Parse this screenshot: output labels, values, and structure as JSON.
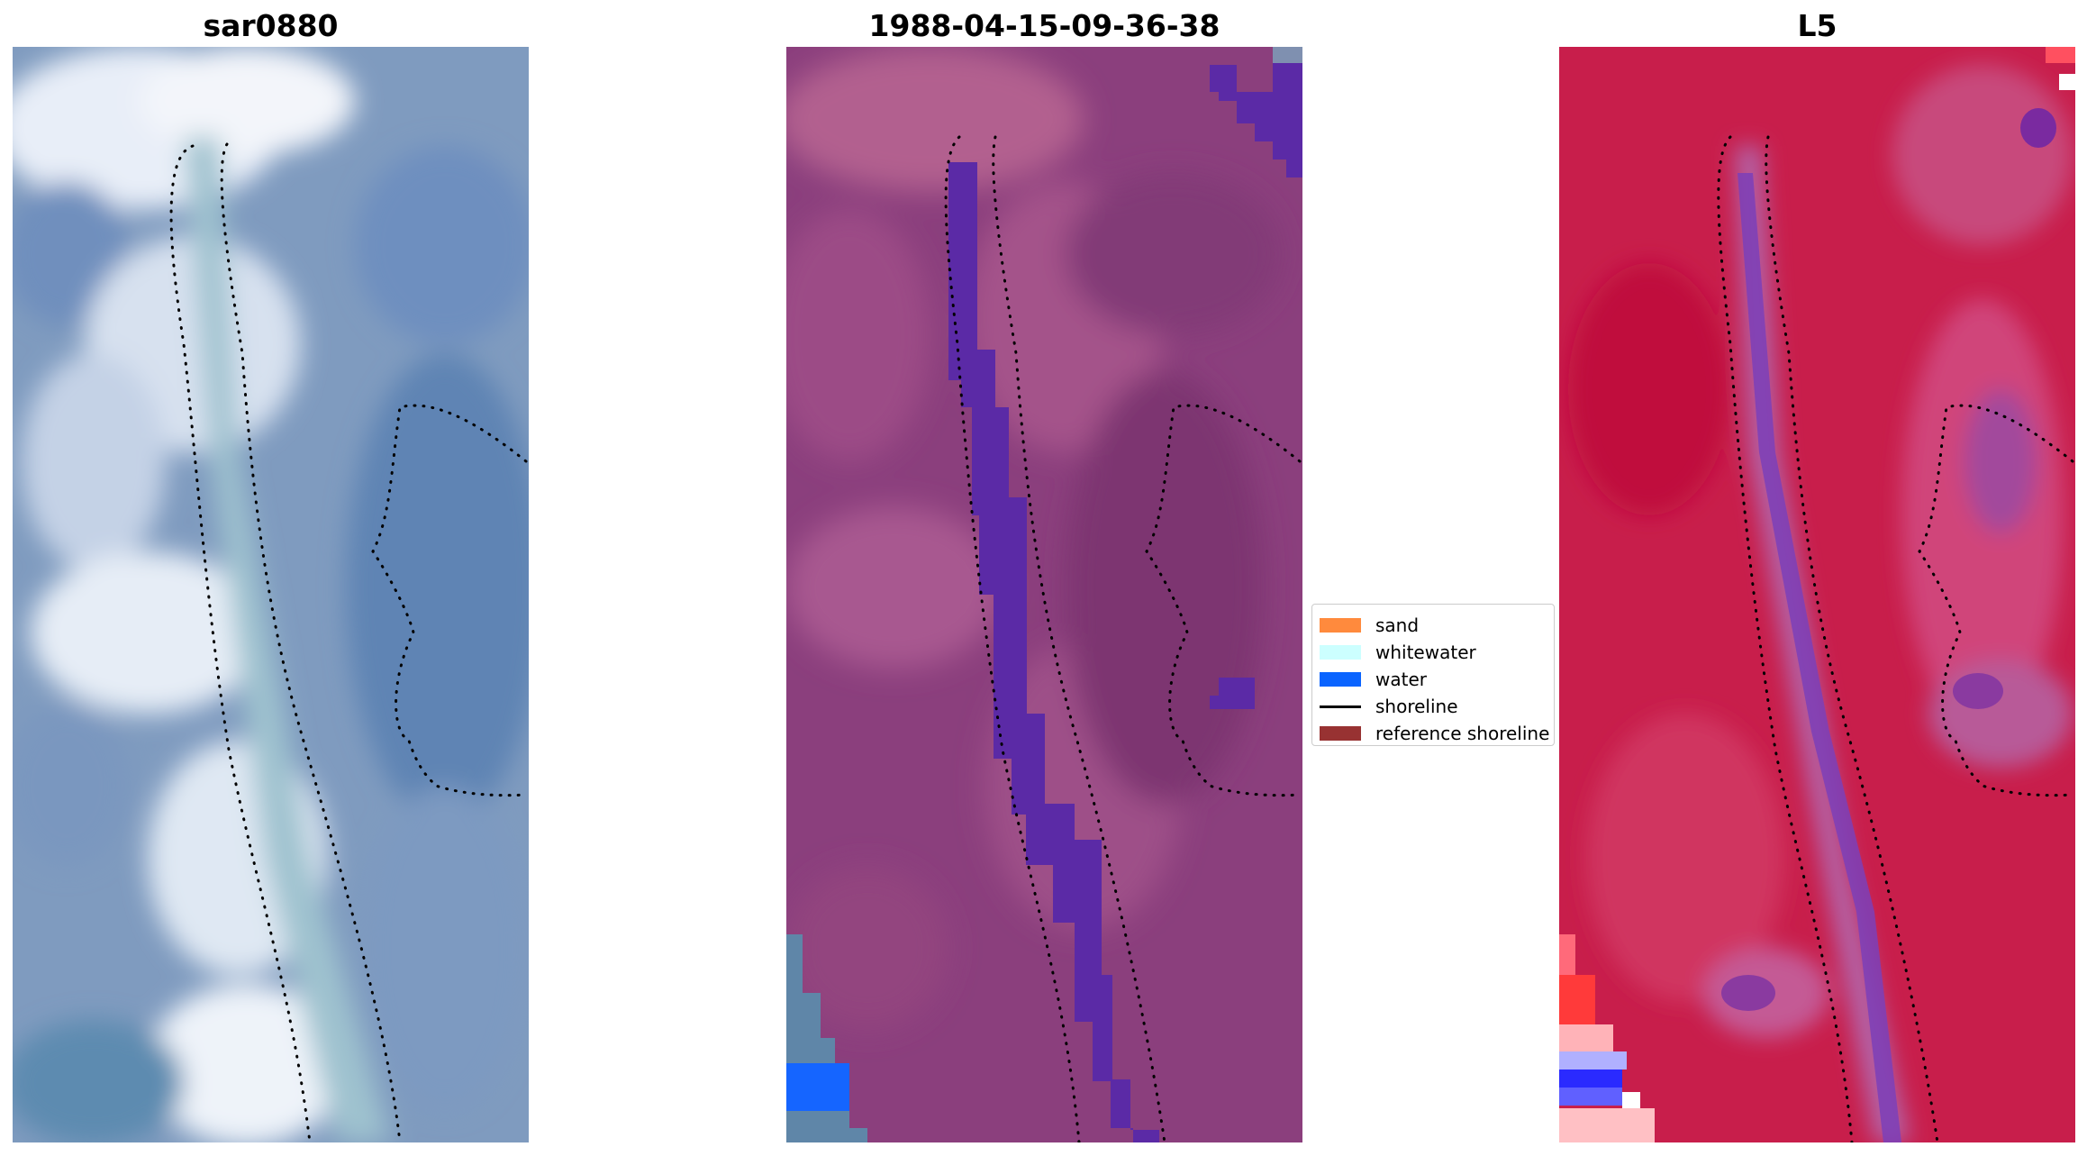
{
  "panels": {
    "left": {
      "title": "sar0880"
    },
    "middle": {
      "title": "1988-04-15-09-36-38"
    },
    "right": {
      "title": "L5"
    }
  },
  "legend": {
    "items": [
      {
        "label": "sand",
        "kind": "patch",
        "color": "#ff8a3d"
      },
      {
        "label": "whitewater",
        "kind": "patch",
        "color": "#ccffff"
      },
      {
        "label": "water",
        "kind": "patch",
        "color": "#0a64ff"
      },
      {
        "label": "shoreline",
        "kind": "line",
        "color": "#000000"
      },
      {
        "label": "reference shoreline",
        "kind": "patch",
        "color": "#983232"
      }
    ]
  },
  "colors": {
    "rgb_background": "#7f9bbf",
    "classified_background": "#8b3f7d",
    "classified_water": "#5b2aa6",
    "classified_sea": "#1565ff",
    "index_background": "#c81e4b",
    "index_water": "#7b3fb8",
    "index_high": "#ff3a3a",
    "index_low": "#2a2aff"
  }
}
